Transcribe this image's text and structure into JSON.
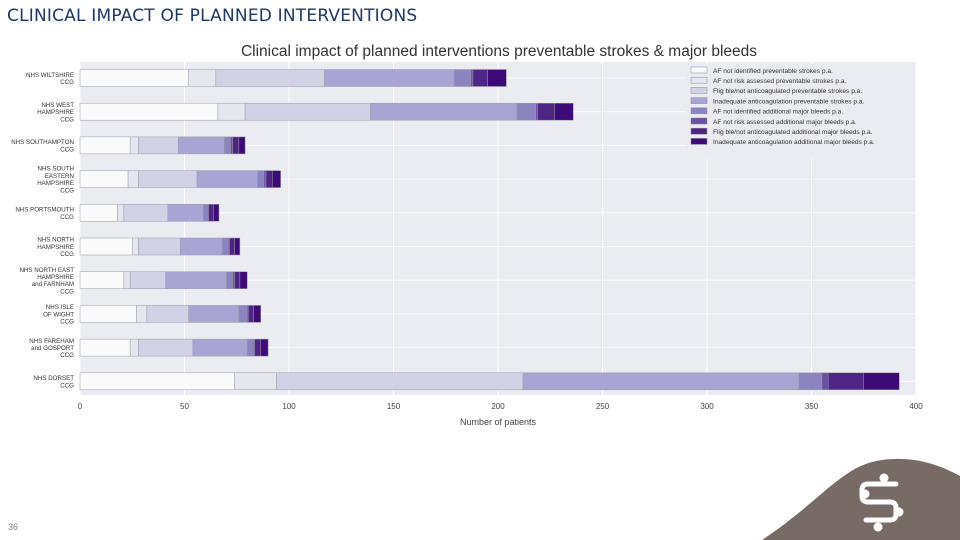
{
  "slide": {
    "title": "CLINICAL IMPACT OF PLANNED INTERVENTIONS",
    "page_number": "36"
  },
  "colors": {
    "title": "#1f3864",
    "plot_background": "#ebebf2",
    "grid": "#ffffff",
    "logo_swoosh": "#786b66",
    "series": [
      "#fafafa",
      "#e6e6ee",
      "#d2d2e6",
      "#a8a5d4",
      "#8a84c0",
      "#6a4fa2",
      "#4e2485",
      "#3d0a78"
    ]
  },
  "chart_data": {
    "type": "bar",
    "orientation": "horizontal",
    "stacked": true,
    "title": "Clinical impact of planned interventions preventable strokes & major bleeds",
    "xlabel": "Number of patients",
    "ylabel": "",
    "xlim": [
      0,
      400
    ],
    "xticks": [
      0,
      50,
      100,
      150,
      200,
      250,
      300,
      350,
      400
    ],
    "grid": true,
    "legend_position": "top-right",
    "categories": [
      [
        "NHS WILTSHIRE",
        "CCG"
      ],
      [
        "NHS WEST",
        "HAMPSHIRE",
        "CCG"
      ],
      [
        "NHS SOUTHAMPTON",
        "CCG"
      ],
      [
        "NHS SOUTH",
        "EASTERN",
        "HAMPSHIRE",
        "CCG"
      ],
      [
        "NHS PORTSMOUTH",
        "CCG"
      ],
      [
        "NHS NORTH",
        "HAMPSHIRE",
        "CCG"
      ],
      [
        "NHS NORTH EAST",
        "HAMPSHIRE",
        "and FARNHAM",
        "CCG"
      ],
      [
        "NHS ISLE",
        "OF WIGHT",
        "CCG"
      ],
      [
        "NHS FAREHAM",
        "and GOSPORT",
        "CCG"
      ],
      [
        "NHS DORSET",
        "CCG"
      ]
    ],
    "series": [
      {
        "name": "AF not identified preventable strokes p.a.",
        "values": [
          52,
          66,
          24,
          23,
          18,
          25,
          21,
          27,
          24,
          74
        ]
      },
      {
        "name": "AF not risk assessed preventable strokes p.a.",
        "values": [
          13,
          13,
          4,
          5,
          3,
          3,
          3,
          5,
          4,
          20
        ]
      },
      {
        "name": "Flig ble/not anticoagulated preventable strokes p.a.",
        "values": [
          52,
          60,
          19,
          28,
          21,
          20,
          17,
          20,
          26,
          118
        ]
      },
      {
        "name": "Inadequate anticoagulation preventable strokes p.a.",
        "values": [
          62,
          70,
          22,
          29,
          17,
          20,
          29,
          24,
          26,
          132
        ]
      },
      {
        "name": "AF not identified additional major bleeds p.a.",
        "values": [
          8,
          9,
          3,
          3,
          2,
          3,
          3,
          4,
          3,
          11
        ]
      },
      {
        "name": "AF not risk assessed additional major bleeds p.a.",
        "values": [
          1,
          1,
          1,
          1,
          0.5,
          0.5,
          1,
          0.5,
          0.5,
          3
        ]
      },
      {
        "name": "Flig ble/not anticoagulated additional major bleeds p.a.",
        "values": [
          7,
          8,
          3,
          3,
          2.5,
          2.5,
          2.5,
          2.5,
          3,
          17
        ]
      },
      {
        "name": "Inadequate anticoagulation additional major bleeds p.a.",
        "values": [
          9,
          9,
          3,
          4,
          2.5,
          2.5,
          3.5,
          3.5,
          3.5,
          17
        ]
      }
    ]
  }
}
